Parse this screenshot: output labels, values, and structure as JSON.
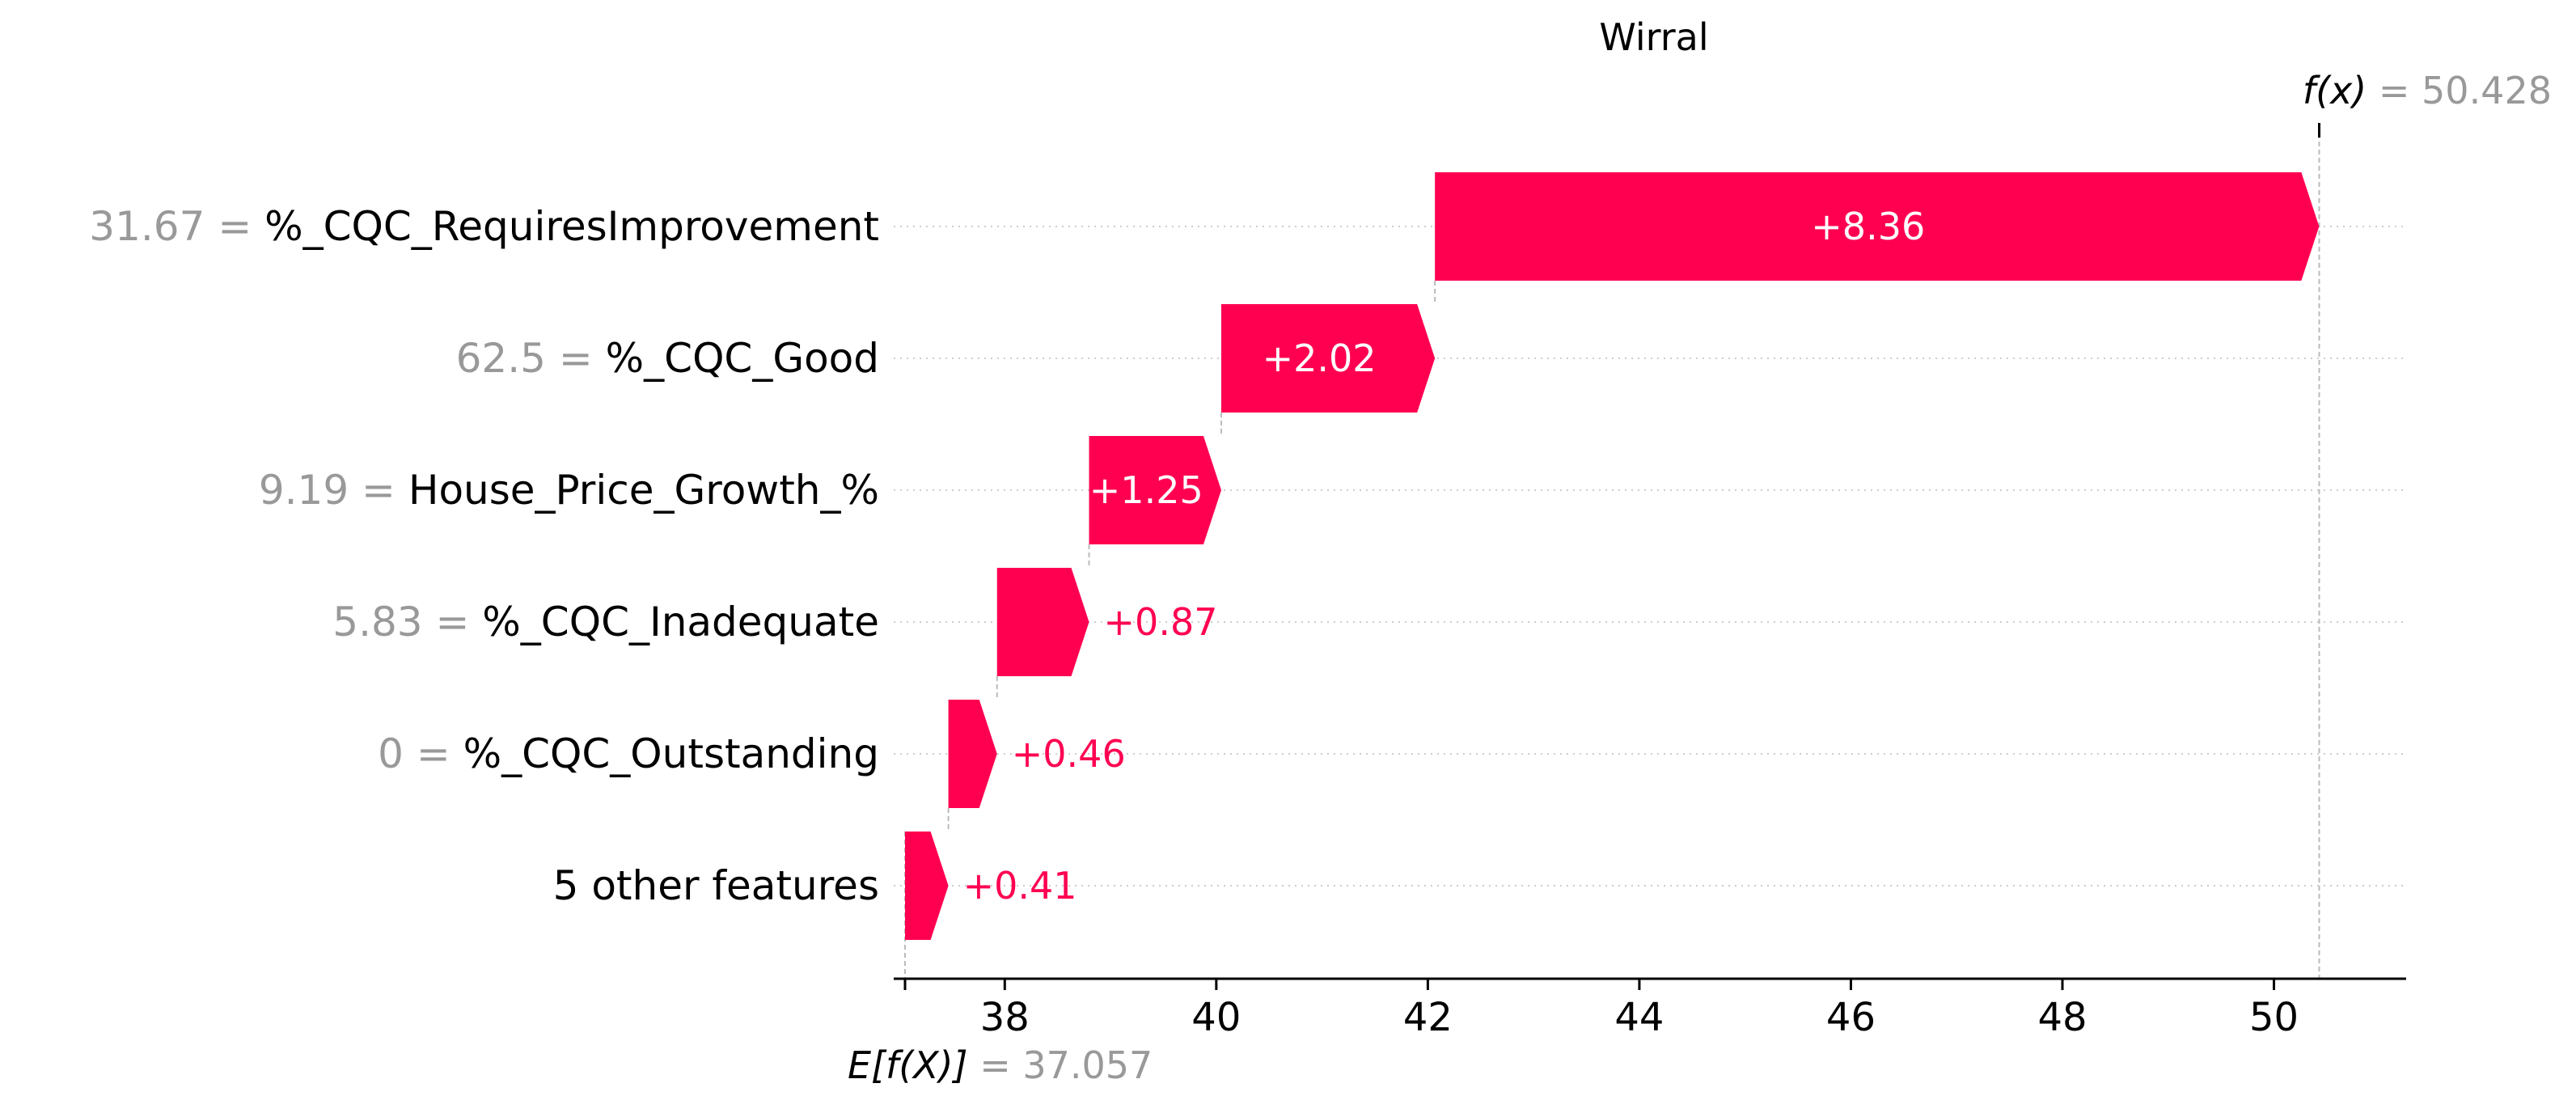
{
  "chart_data": {
    "type": "waterfall",
    "title": "Wirral",
    "base_value": 37.057,
    "base_value_label": "37.057",
    "base_label_text": "E[f(X)]",
    "output_value": 50.428,
    "output_value_label": "50.428",
    "output_label_text": "f(x)",
    "features": [
      {
        "feature_value": "31.67",
        "feature_name": "%_CQC_RequiresImprovement",
        "contribution": 8.36,
        "contribution_label": "+8.36"
      },
      {
        "feature_value": "62.5",
        "feature_name": "%_CQC_Good",
        "contribution": 2.02,
        "contribution_label": "+2.02"
      },
      {
        "feature_value": "9.19",
        "feature_name": "House_Price_Growth_%",
        "contribution": 1.25,
        "contribution_label": "+1.25"
      },
      {
        "feature_value": "5.83",
        "feature_name": "%_CQC_Inadequate",
        "contribution": 0.87,
        "contribution_label": "+0.87"
      },
      {
        "feature_value": "0",
        "feature_name": "%_CQC_Outstanding",
        "contribution": 0.46,
        "contribution_label": "+0.46"
      },
      {
        "feature_value": "",
        "feature_name": "5 other features",
        "contribution": 0.41,
        "contribution_label": "+0.41"
      }
    ],
    "x_ticks": [
      38,
      40,
      42,
      44,
      46,
      48,
      50
    ],
    "xlim": [
      36.95,
      51.25
    ],
    "colors": {
      "positive": "#ff0051",
      "value_gray": "#999999",
      "grid": "#cccccc",
      "axis": "#000000"
    }
  }
}
